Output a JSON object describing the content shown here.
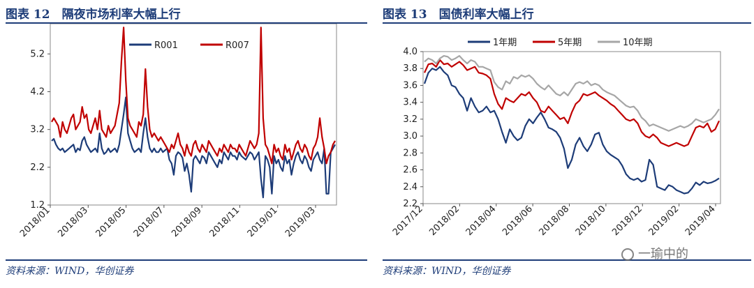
{
  "charts": [
    {
      "title": "图表 12　隔夜市场利率大幅上行",
      "source": "资料来源：WIND，华创证券",
      "chart_data": {
        "type": "line",
        "ylabel": "%",
        "ylim": [
          1.2,
          6.0
        ],
        "yticks": [
          "5.2",
          "4.2",
          "3.2",
          "2.2",
          "1.2"
        ],
        "ytick_values": [
          5.2,
          4.2,
          3.2,
          2.2,
          1.2
        ],
        "xticks": [
          "2018/01",
          "2018/03",
          "2018/05",
          "2018/07",
          "2018/09",
          "2018/11",
          "2019/01",
          "2019/03"
        ],
        "legend_position": "top",
        "series": [
          {
            "name": "R001",
            "color": "#1d3c78",
            "values": [
              2.9,
              2.95,
              2.8,
              2.7,
              2.65,
              2.7,
              2.6,
              2.65,
              2.7,
              2.75,
              2.8,
              2.6,
              2.7,
              2.65,
              2.9,
              3.0,
              2.8,
              2.7,
              2.6,
              2.65,
              2.7,
              2.6,
              3.1,
              2.7,
              2.55,
              2.6,
              2.7,
              2.6,
              2.65,
              2.7,
              2.6,
              2.8,
              3.2,
              3.6,
              4.05,
              3.1,
              2.9,
              2.7,
              2.6,
              2.65,
              2.7,
              2.6,
              3.1,
              3.5,
              3.0,
              2.7,
              2.6,
              2.7,
              2.6,
              2.6,
              2.7,
              2.6,
              2.65,
              2.7,
              2.4,
              2.3,
              2.0,
              2.5,
              2.6,
              2.55,
              2.45,
              2.1,
              2.3,
              2.0,
              1.55,
              2.4,
              2.5,
              2.4,
              2.3,
              2.5,
              2.45,
              2.3,
              2.6,
              2.5,
              2.4,
              2.3,
              2.2,
              2.4,
              2.3,
              2.6,
              2.5,
              2.4,
              2.6,
              2.5,
              2.5,
              2.4,
              2.6,
              2.5,
              2.45,
              2.4,
              2.5,
              2.6,
              2.55,
              2.4,
              2.5,
              2.6,
              1.9,
              1.4,
              2.5,
              2.4,
              2.2,
              1.5,
              2.5,
              2.3,
              2.4,
              2.2,
              2.1,
              2.5,
              2.3,
              2.4,
              2.0,
              2.3,
              2.5,
              2.6,
              2.4,
              2.3,
              2.5,
              2.4,
              2.2,
              2.1,
              2.4,
              2.5,
              2.6,
              2.4,
              2.3,
              2.7,
              1.5,
              1.5,
              2.6,
              2.7,
              2.8
            ]
          },
          {
            "name": "R007",
            "color": "#c00000",
            "values": [
              3.4,
              3.5,
              3.4,
              3.3,
              3.0,
              3.4,
              3.2,
              3.1,
              3.3,
              3.5,
              3.6,
              3.2,
              3.3,
              3.4,
              3.8,
              3.5,
              3.6,
              3.2,
              3.1,
              3.3,
              3.5,
              3.2,
              3.7,
              3.2,
              3.1,
              3.0,
              3.3,
              3.1,
              3.2,
              3.3,
              3.6,
              3.9,
              5.0,
              5.9,
              4.5,
              3.5,
              3.3,
              3.2,
              3.1,
              3.0,
              3.4,
              3.3,
              3.6,
              4.8,
              3.8,
              3.2,
              3.0,
              3.1,
              3.0,
              2.9,
              3.0,
              2.9,
              2.8,
              2.7,
              2.6,
              2.8,
              2.7,
              2.9,
              3.1,
              2.8,
              2.7,
              2.5,
              2.8,
              2.6,
              2.5,
              2.8,
              2.9,
              2.7,
              2.6,
              2.8,
              2.7,
              2.6,
              2.9,
              2.8,
              2.7,
              2.6,
              2.5,
              2.7,
              2.6,
              2.8,
              2.7,
              2.6,
              2.8,
              2.7,
              2.7,
              2.6,
              2.8,
              2.7,
              2.6,
              2.5,
              2.7,
              2.9,
              2.8,
              2.7,
              2.8,
              3.1,
              5.9,
              3.5,
              2.8,
              2.7,
              2.5,
              2.3,
              2.8,
              2.6,
              2.7,
              2.5,
              2.4,
              2.8,
              2.6,
              2.7,
              2.4,
              2.6,
              2.8,
              2.9,
              2.7,
              2.6,
              2.8,
              2.7,
              2.5,
              2.4,
              2.7,
              2.8,
              3.0,
              3.5,
              3.0,
              2.7,
              2.3,
              2.5,
              2.6,
              2.8,
              2.9
            ]
          }
        ]
      }
    },
    {
      "title": "图表 13　国债利率大幅上行",
      "source": "资料来源：WIND，华创证券",
      "chart_data": {
        "type": "line",
        "ylim": [
          2.2,
          4.0
        ],
        "yticks": [
          "4.0",
          "3.8",
          "3.6",
          "3.4",
          "3.2",
          "3.0",
          "2.8",
          "2.6",
          "2.4",
          "2.2"
        ],
        "ytick_values": [
          4.0,
          3.8,
          3.6,
          3.4,
          3.2,
          3.0,
          2.8,
          2.6,
          2.4,
          2.2
        ],
        "xticks": [
          "2017/12",
          "2018/02",
          "2018/04",
          "2018/06",
          "2018/08",
          "2018/10",
          "2018/12",
          "2019/02",
          "2019/04"
        ],
        "legend_position": "top",
        "series": [
          {
            "name": "1年期",
            "color": "#1d3c78",
            "values": [
              3.62,
              3.75,
              3.8,
              3.78,
              3.82,
              3.76,
              3.72,
              3.6,
              3.58,
              3.5,
              3.45,
              3.3,
              3.45,
              3.35,
              3.28,
              3.3,
              3.35,
              3.28,
              3.3,
              3.2,
              3.05,
              2.92,
              3.08,
              3.0,
              2.95,
              2.98,
              3.12,
              3.2,
              3.15,
              3.22,
              3.28,
              3.2,
              3.1,
              3.08,
              3.05,
              2.98,
              2.85,
              2.62,
              2.72,
              2.9,
              2.98,
              2.88,
              2.82,
              2.9,
              3.02,
              3.04,
              2.9,
              2.82,
              2.78,
              2.75,
              2.72,
              2.65,
              2.55,
              2.5,
              2.48,
              2.5,
              2.46,
              2.48,
              2.72,
              2.66,
              2.4,
              2.38,
              2.36,
              2.42,
              2.4,
              2.36,
              2.34,
              2.32,
              2.33,
              2.38,
              2.45,
              2.42,
              2.46,
              2.44,
              2.45,
              2.47,
              2.5
            ]
          },
          {
            "name": "5年期",
            "color": "#c00000",
            "values": [
              3.75,
              3.85,
              3.86,
              3.82,
              3.9,
              3.85,
              3.86,
              3.82,
              3.85,
              3.88,
              3.84,
              3.78,
              3.8,
              3.82,
              3.75,
              3.74,
              3.72,
              3.68,
              3.5,
              3.38,
              3.32,
              3.45,
              3.42,
              3.4,
              3.45,
              3.5,
              3.48,
              3.52,
              3.45,
              3.4,
              3.3,
              3.28,
              3.35,
              3.3,
              3.25,
              3.2,
              3.22,
              3.15,
              3.28,
              3.38,
              3.42,
              3.5,
              3.48,
              3.5,
              3.52,
              3.48,
              3.45,
              3.42,
              3.38,
              3.35,
              3.3,
              3.25,
              3.2,
              3.18,
              3.2,
              3.15,
              3.05,
              3.0,
              2.98,
              3.02,
              2.98,
              2.92,
              2.9,
              2.88,
              2.9,
              2.92,
              2.9,
              2.88,
              2.9,
              3.0,
              3.1,
              3.12,
              3.1,
              3.15,
              3.05,
              3.08,
              3.18
            ]
          },
          {
            "name": "10年期",
            "color": "#a6a6a6",
            "values": [
              3.88,
              3.92,
              3.9,
              3.86,
              3.92,
              3.95,
              3.94,
              3.9,
              3.92,
              3.95,
              3.9,
              3.86,
              3.9,
              3.88,
              3.82,
              3.82,
              3.8,
              3.78,
              3.64,
              3.58,
              3.55,
              3.65,
              3.62,
              3.7,
              3.68,
              3.72,
              3.7,
              3.72,
              3.68,
              3.62,
              3.58,
              3.55,
              3.6,
              3.55,
              3.5,
              3.48,
              3.52,
              3.48,
              3.55,
              3.62,
              3.64,
              3.62,
              3.65,
              3.6,
              3.62,
              3.6,
              3.55,
              3.52,
              3.5,
              3.48,
              3.44,
              3.4,
              3.36,
              3.34,
              3.35,
              3.3,
              3.22,
              3.18,
              3.12,
              3.14,
              3.12,
              3.1,
              3.08,
              3.06,
              3.08,
              3.1,
              3.12,
              3.1,
              3.12,
              3.15,
              3.2,
              3.18,
              3.16,
              3.18,
              3.2,
              3.25,
              3.32
            ]
          }
        ]
      }
    }
  ],
  "watermark": {
    "text": "一瑜中的"
  }
}
